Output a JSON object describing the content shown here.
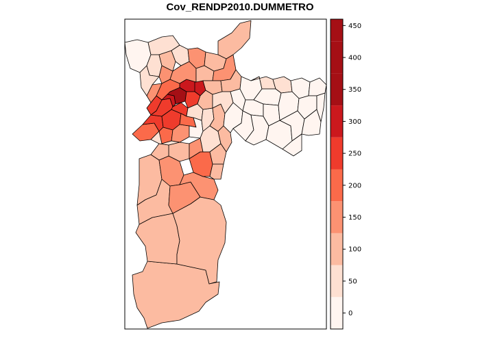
{
  "title": "Cov_RENDP2010.DUMMETRO",
  "legend": {
    "tick_labels": [
      "0",
      "50",
      "100",
      "150",
      "200",
      "250",
      "300",
      "350",
      "400",
      "450"
    ],
    "tick_values": [
      0,
      50,
      100,
      150,
      200,
      250,
      300,
      350,
      400,
      450
    ],
    "breaks": [
      -25,
      25,
      75,
      125,
      175,
      225,
      275,
      325,
      375,
      425,
      460
    ],
    "colors": [
      "#fff5f0",
      "#fee0d2",
      "#fcbba1",
      "#fc9272",
      "#fb6a4a",
      "#ef3b2c",
      "#cb181d",
      "#a50f15"
    ]
  },
  "colors": {
    "c1": "#fff5f0",
    "c2": "#fee0d2",
    "c3": "#fcbba1",
    "c4": "#fc9272",
    "c5": "#fb6a4a",
    "c6": "#ef3b2c",
    "c7": "#cb181d",
    "c8": "#a50f15"
  }
}
